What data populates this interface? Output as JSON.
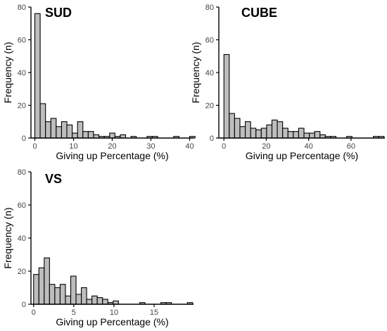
{
  "chart_data": [
    {
      "type": "bar",
      "title": "SUD",
      "xlabel": "Giving up Percentage (%)",
      "ylabel": "Frequency (n)",
      "xlim": [
        -1,
        41
      ],
      "ylim": [
        0,
        80
      ],
      "xticks": [
        0,
        10,
        20,
        30,
        40
      ],
      "yticks": [
        0,
        20,
        40,
        60,
        80
      ],
      "bin_width": 1.38,
      "bin_start": 0,
      "values": [
        76,
        21,
        10,
        12,
        7,
        10,
        8,
        3,
        10,
        4,
        4,
        2,
        1,
        1,
        3,
        1,
        2,
        0,
        1,
        0,
        0,
        1,
        1,
        0,
        0,
        0,
        1,
        0,
        0,
        1
      ]
    },
    {
      "type": "bar",
      "title": "CUBE",
      "xlabel": "Giving up Percentage (%)",
      "ylabel": "Frequency (n)",
      "xlim": [
        -2.4,
        76
      ],
      "ylim": [
        0,
        80
      ],
      "xticks": [
        0,
        20,
        40,
        60
      ],
      "yticks": [
        0,
        20,
        40,
        60,
        80
      ],
      "bin_width": 2.52,
      "bin_start": 0,
      "values": [
        51,
        15,
        12,
        7,
        10,
        6,
        5,
        6,
        8,
        11,
        10,
        6,
        4,
        4,
        6,
        3,
        3,
        4,
        2,
        1,
        1,
        0,
        0,
        1,
        0,
        0,
        0,
        0,
        1,
        1
      ]
    },
    {
      "type": "bar",
      "title": "VS",
      "xlabel": "Giving up Percentage (%)",
      "ylabel": "Frequency (n)",
      "xlim": [
        -0.33,
        19.9
      ],
      "ylim": [
        0,
        80
      ],
      "xticks": [
        0,
        5,
        10,
        15
      ],
      "yticks": [
        0,
        20,
        40,
        60,
        80
      ],
      "bin_width": 0.66,
      "bin_start": 0,
      "values": [
        18,
        22,
        28,
        12,
        10,
        12,
        5,
        17,
        6,
        10,
        3,
        5,
        4,
        3,
        1,
        2,
        0,
        0,
        0,
        0,
        1,
        0,
        0,
        0,
        1,
        1,
        0,
        0,
        0,
        1
      ]
    }
  ]
}
